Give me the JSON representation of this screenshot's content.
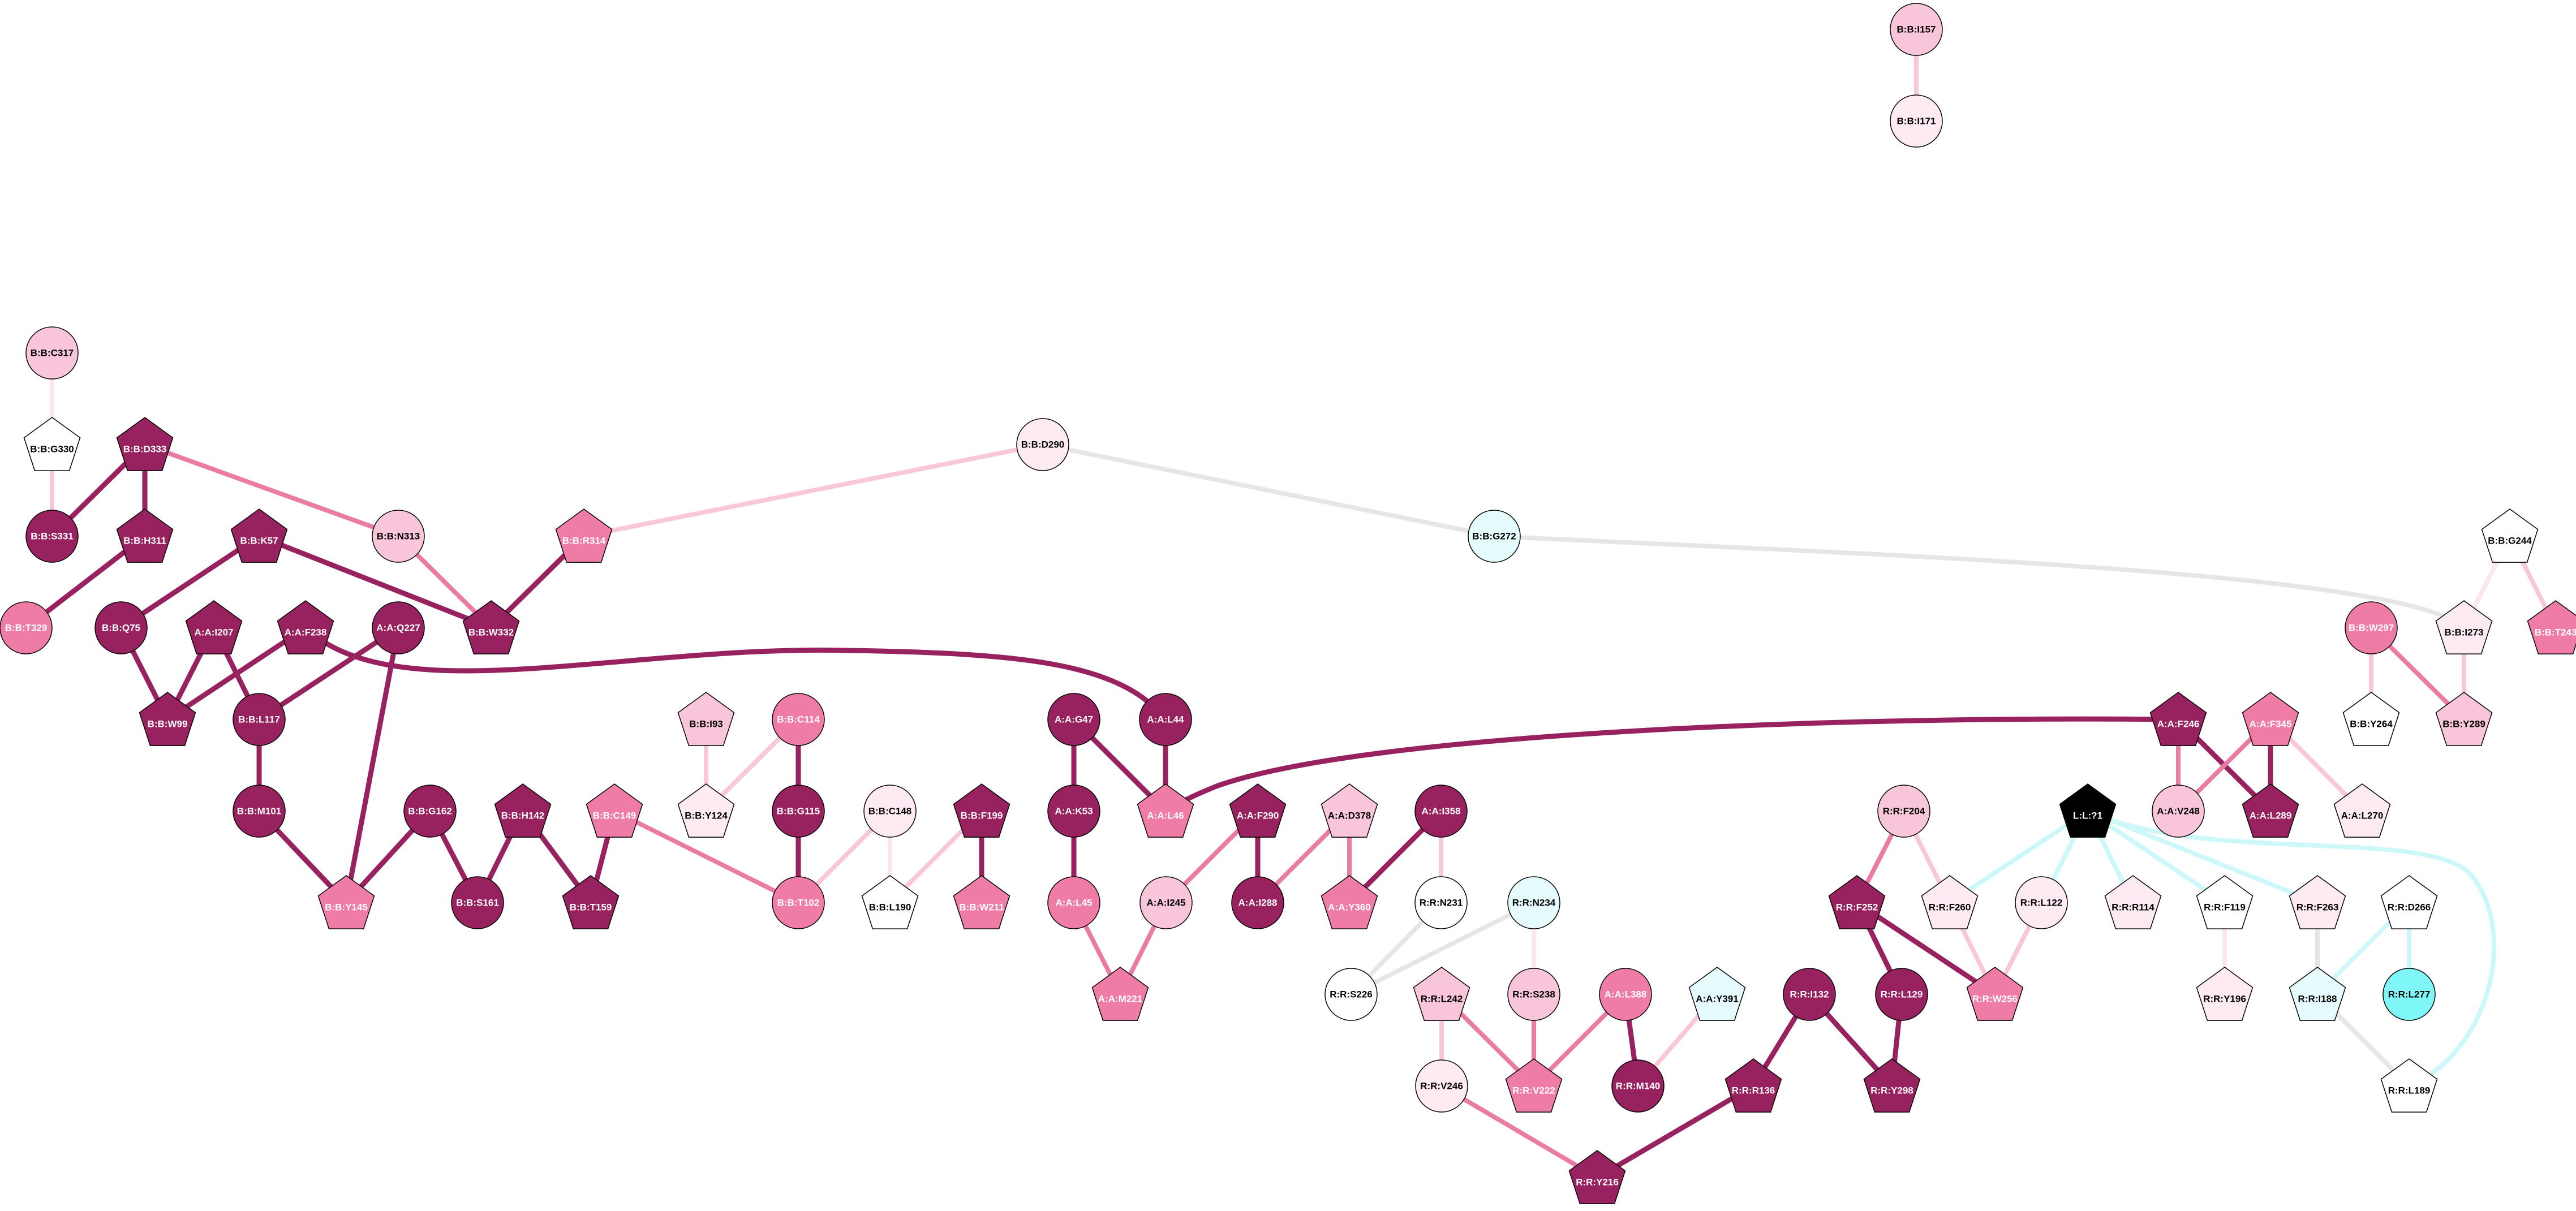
{
  "colors": {
    "dark": "#98215f",
    "mid": "#ef7ca7",
    "light": "#f8c5da",
    "pale": "#fdeaf2",
    "white": "#ffffff",
    "cyan_pale": "#e6fcfc",
    "cyan": "#7ff6f8",
    "black": "#000000",
    "edge_dark": "#98215f",
    "edge_mid": "#ea7ba2",
    "edge_light": "#f8c8d9",
    "edge_pale": "#fce6ef",
    "edge_grey": "#e6e6e6",
    "edge_cyan": "#cdf8f9"
  },
  "nodes": [
    {
      "id": "B:B:I157",
      "label": "B:B:I157",
      "shape": "circle",
      "fill": "light"
    },
    {
      "id": "B:B:I171",
      "label": "B:B:I171",
      "shape": "circle",
      "fill": "pale"
    },
    {
      "id": "B:B:C317",
      "label": "B:B:C317",
      "shape": "circle",
      "fill": "light"
    },
    {
      "id": "B:B:G330",
      "label": "B:B:G330",
      "shape": "pentagon",
      "fill": "white"
    },
    {
      "id": "B:B:D333",
      "label": "B:B:D333",
      "shape": "pentagon",
      "fill": "dark"
    },
    {
      "id": "B:B:S331",
      "label": "B:B:S331",
      "shape": "circle",
      "fill": "dark"
    },
    {
      "id": "B:B:H311",
      "label": "B:B:H311",
      "shape": "pentagon",
      "fill": "dark"
    },
    {
      "id": "B:B:T329",
      "label": "B:B:T329",
      "shape": "circle",
      "fill": "mid"
    },
    {
      "id": "B:B:K57",
      "label": "B:B:K57",
      "shape": "pentagon",
      "fill": "dark"
    },
    {
      "id": "B:B:N313",
      "label": "B:B:N313",
      "shape": "circle",
      "fill": "light"
    },
    {
      "id": "B:B:R314",
      "label": "B:B:R314",
      "shape": "pentagon",
      "fill": "mid"
    },
    {
      "id": "B:B:W332",
      "label": "B:B:W332",
      "shape": "pentagon",
      "fill": "dark"
    },
    {
      "id": "B:B:D290",
      "label": "B:B:D290",
      "shape": "circle",
      "fill": "pale"
    },
    {
      "id": "B:B:G272",
      "label": "B:B:G272",
      "shape": "circle",
      "fill": "cyan_pale"
    },
    {
      "id": "B:B:G244",
      "label": "B:B:G244",
      "shape": "pentagon",
      "fill": "white"
    },
    {
      "id": "B:B:I273",
      "label": "B:B:I273",
      "shape": "pentagon",
      "fill": "pale"
    },
    {
      "id": "B:B:T243",
      "label": "B:B:T243",
      "shape": "pentagon",
      "fill": "mid"
    },
    {
      "id": "B:B:W297",
      "label": "B:B:W297",
      "shape": "circle",
      "fill": "mid"
    },
    {
      "id": "B:B:Y264",
      "label": "B:B:Y264",
      "shape": "pentagon",
      "fill": "white"
    },
    {
      "id": "B:B:Y289",
      "label": "B:B:Y289",
      "shape": "pentagon",
      "fill": "light"
    },
    {
      "id": "B:B:Q75",
      "label": "B:B:Q75",
      "shape": "circle",
      "fill": "dark"
    },
    {
      "id": "A:A:I207",
      "label": "A:A:I207",
      "shape": "pentagon",
      "fill": "dark"
    },
    {
      "id": "A:A:F238",
      "label": "A:A:F238",
      "shape": "pentagon",
      "fill": "dark"
    },
    {
      "id": "A:A:Q227",
      "label": "A:A:Q227",
      "shape": "circle",
      "fill": "dark"
    },
    {
      "id": "B:B:W99",
      "label": "B:B:W99",
      "shape": "pentagon",
      "fill": "dark"
    },
    {
      "id": "B:B:L117",
      "label": "B:B:L117",
      "shape": "circle",
      "fill": "dark"
    },
    {
      "id": "B:B:M101",
      "label": "B:B:M101",
      "shape": "circle",
      "fill": "dark"
    },
    {
      "id": "B:B:G162",
      "label": "B:B:G162",
      "shape": "circle",
      "fill": "dark"
    },
    {
      "id": "B:B:H142",
      "label": "B:B:H142",
      "shape": "pentagon",
      "fill": "dark"
    },
    {
      "id": "B:B:C149",
      "label": "B:B:C149",
      "shape": "pentagon",
      "fill": "mid"
    },
    {
      "id": "B:B:Y145",
      "label": "B:B:Y145",
      "shape": "pentagon",
      "fill": "mid"
    },
    {
      "id": "B:B:S161",
      "label": "B:B:S161",
      "shape": "circle",
      "fill": "dark"
    },
    {
      "id": "B:B:T159",
      "label": "B:B:T159",
      "shape": "pentagon",
      "fill": "dark"
    },
    {
      "id": "B:B:I93",
      "label": "B:B:I93",
      "shape": "pentagon",
      "fill": "light"
    },
    {
      "id": "B:B:Y124",
      "label": "B:B:Y124",
      "shape": "pentagon",
      "fill": "pale"
    },
    {
      "id": "B:B:C114",
      "label": "B:B:C114",
      "shape": "circle",
      "fill": "mid"
    },
    {
      "id": "B:B:G115",
      "label": "B:B:G115",
      "shape": "circle",
      "fill": "dark"
    },
    {
      "id": "B:B:T102",
      "label": "B:B:T102",
      "shape": "circle",
      "fill": "mid"
    },
    {
      "id": "B:B:C148",
      "label": "B:B:C148",
      "shape": "circle",
      "fill": "pale"
    },
    {
      "id": "B:B:L190",
      "label": "B:B:L190",
      "shape": "pentagon",
      "fill": "white"
    },
    {
      "id": "B:B:F199",
      "label": "B:B:F199",
      "shape": "pentagon",
      "fill": "dark"
    },
    {
      "id": "B:B:W211",
      "label": "B:B:W211",
      "shape": "pentagon",
      "fill": "mid"
    },
    {
      "id": "A:A:G47",
      "label": "A:A:G47",
      "shape": "circle",
      "fill": "dark"
    },
    {
      "id": "A:A:L44",
      "label": "A:A:L44",
      "shape": "circle",
      "fill": "dark"
    },
    {
      "id": "A:A:K53",
      "label": "A:A:K53",
      "shape": "circle",
      "fill": "dark"
    },
    {
      "id": "A:A:L46",
      "label": "A:A:L46",
      "shape": "pentagon",
      "fill": "mid"
    },
    {
      "id": "A:A:L45",
      "label": "A:A:L45",
      "shape": "circle",
      "fill": "mid"
    },
    {
      "id": "A:A:M221",
      "label": "A:A:M221",
      "shape": "pentagon",
      "fill": "mid"
    },
    {
      "id": "A:A:F290",
      "label": "A:A:F290",
      "shape": "pentagon",
      "fill": "dark"
    },
    {
      "id": "A:A:I245",
      "label": "A:A:I245",
      "shape": "circle",
      "fill": "light"
    },
    {
      "id": "A:A:I288",
      "label": "A:A:I288",
      "shape": "circle",
      "fill": "dark"
    },
    {
      "id": "A:A:D378",
      "label": "A:A:D378",
      "shape": "pentagon",
      "fill": "light"
    },
    {
      "id": "A:A:I358",
      "label": "A:A:I358",
      "shape": "circle",
      "fill": "dark"
    },
    {
      "id": "A:A:Y360",
      "label": "A:A:Y360",
      "shape": "pentagon",
      "fill": "mid"
    },
    {
      "id": "R:R:N231",
      "label": "R:R:N231",
      "shape": "circle",
      "fill": "white"
    },
    {
      "id": "R:R:N234",
      "label": "R:R:N234",
      "shape": "circle",
      "fill": "cyan_pale"
    },
    {
      "id": "R:R:S226",
      "label": "R:R:S226",
      "shape": "circle",
      "fill": "white"
    },
    {
      "id": "R:R:L242",
      "label": "R:R:L242",
      "shape": "pentagon",
      "fill": "light"
    },
    {
      "id": "R:R:S238",
      "label": "R:R:S238",
      "shape": "circle",
      "fill": "light"
    },
    {
      "id": "A:A:L388",
      "label": "A:A:L388",
      "shape": "circle",
      "fill": "mid"
    },
    {
      "id": "A:A:Y391",
      "label": "A:A:Y391",
      "shape": "pentagon",
      "fill": "cyan_pale"
    },
    {
      "id": "R:R:V246",
      "label": "R:R:V246",
      "shape": "circle",
      "fill": "pale"
    },
    {
      "id": "R:R:V222",
      "label": "R:R:V222",
      "shape": "pentagon",
      "fill": "mid"
    },
    {
      "id": "R:R:M140",
      "label": "R:R:M140",
      "shape": "circle",
      "fill": "dark"
    },
    {
      "id": "R:R:Y216",
      "label": "R:R:Y216",
      "shape": "pentagon",
      "fill": "dark"
    },
    {
      "id": "R:R:I132",
      "label": "R:R:I132",
      "shape": "circle",
      "fill": "dark"
    },
    {
      "id": "R:R:R136",
      "label": "R:R:R136",
      "shape": "pentagon",
      "fill": "dark"
    },
    {
      "id": "R:R:Y298",
      "label": "R:R:Y298",
      "shape": "pentagon",
      "fill": "dark"
    },
    {
      "id": "R:R:F204",
      "label": "R:R:F204",
      "shape": "circle",
      "fill": "light"
    },
    {
      "id": "R:R:F252",
      "label": "R:R:F252",
      "shape": "pentagon",
      "fill": "dark"
    },
    {
      "id": "R:R:L129",
      "label": "R:R:L129",
      "shape": "circle",
      "fill": "dark"
    },
    {
      "id": "R:R:F260",
      "label": "R:R:F260",
      "shape": "pentagon",
      "fill": "pale"
    },
    {
      "id": "R:R:L122",
      "label": "R:R:L122",
      "shape": "circle",
      "fill": "pale"
    },
    {
      "id": "R:R:W256",
      "label": "R:R:W256",
      "shape": "pentagon",
      "fill": "mid"
    },
    {
      "id": "R:R:R114",
      "label": "R:R:R114",
      "shape": "pentagon",
      "fill": "pale"
    },
    {
      "id": "L:L:?1",
      "label": "L:L:?1",
      "shape": "pentagon",
      "fill": "black"
    },
    {
      "id": "R:R:F119",
      "label": "R:R:F119",
      "shape": "pentagon",
      "fill": "white"
    },
    {
      "id": "R:R:F263",
      "label": "R:R:F263",
      "shape": "pentagon",
      "fill": "pale"
    },
    {
      "id": "R:R:D266",
      "label": "R:R:D266",
      "shape": "pentagon",
      "fill": "white"
    },
    {
      "id": "R:R:Y196",
      "label": "R:R:Y196",
      "shape": "pentagon",
      "fill": "pale"
    },
    {
      "id": "R:R:I188",
      "label": "R:R:I188",
      "shape": "pentagon",
      "fill": "cyan_pale"
    },
    {
      "id": "R:R:L277",
      "label": "R:R:L277",
      "shape": "circle",
      "fill": "cyan"
    },
    {
      "id": "R:R:L189",
      "label": "R:R:L189",
      "shape": "pentagon",
      "fill": "white"
    },
    {
      "id": "A:A:F246",
      "label": "A:A:F246",
      "shape": "pentagon",
      "fill": "dark"
    },
    {
      "id": "A:A:F345",
      "label": "A:A:F345",
      "shape": "pentagon",
      "fill": "mid"
    },
    {
      "id": "A:A:V248",
      "label": "A:A:V248",
      "shape": "circle",
      "fill": "light"
    },
    {
      "id": "A:A:L289",
      "label": "A:A:L289",
      "shape": "pentagon",
      "fill": "dark"
    },
    {
      "id": "A:A:L270",
      "label": "A:A:L270",
      "shape": "pentagon",
      "fill": "pale"
    }
  ],
  "edges": [
    {
      "source": "B:B:I157",
      "target": "B:B:I171",
      "color": "edge_light"
    },
    {
      "source": "B:B:C317",
      "target": "B:B:G330",
      "color": "edge_pale"
    },
    {
      "source": "B:B:G330",
      "target": "B:B:S331",
      "color": "edge_light"
    },
    {
      "source": "B:B:D333",
      "target": "B:B:S331",
      "color": "edge_dark"
    },
    {
      "source": "B:B:D333",
      "target": "B:B:H311",
      "color": "edge_dark"
    },
    {
      "source": "B:B:D333",
      "target": "B:B:N313",
      "color": "edge_mid"
    },
    {
      "source": "B:B:H311",
      "target": "B:B:T329",
      "color": "edge_dark"
    },
    {
      "source": "B:B:N313",
      "target": "B:B:W332",
      "color": "edge_mid"
    },
    {
      "source": "B:B:K57",
      "target": "B:B:W332",
      "color": "edge_dark"
    },
    {
      "source": "B:B:K57",
      "target": "B:B:Q75",
      "color": "edge_dark"
    },
    {
      "source": "B:B:R314",
      "target": "B:B:W332",
      "color": "edge_dark"
    },
    {
      "source": "B:B:R314",
      "target": "B:B:D290",
      "color": "edge_light"
    },
    {
      "source": "B:B:D290",
      "target": "B:B:G272",
      "color": "edge_grey"
    },
    {
      "source": "B:B:G272",
      "target": "B:B:I273",
      "color": "edge_grey",
      "curve": "g272"
    },
    {
      "source": "B:B:G244",
      "target": "B:B:I273",
      "color": "edge_pale"
    },
    {
      "source": "B:B:G244",
      "target": "B:B:T243",
      "color": "edge_light"
    },
    {
      "source": "B:B:I273",
      "target": "B:B:Y289",
      "color": "edge_light"
    },
    {
      "source": "B:B:W297",
      "target": "B:B:Y289",
      "color": "edge_mid"
    },
    {
      "source": "B:B:W297",
      "target": "B:B:Y264",
      "color": "edge_light"
    },
    {
      "source": "B:B:Q75",
      "target": "B:B:W99",
      "color": "edge_dark"
    },
    {
      "source": "A:A:I207",
      "target": "B:B:W99",
      "color": "edge_dark"
    },
    {
      "source": "A:A:I207",
      "target": "B:B:L117",
      "color": "edge_dark"
    },
    {
      "source": "A:A:F238",
      "target": "B:B:W99",
      "color": "edge_dark"
    },
    {
      "source": "A:A:F238",
      "target": "A:A:L44",
      "color": "edge_dark",
      "curve": "f238"
    },
    {
      "source": "A:A:Q227",
      "target": "B:B:L117",
      "color": "edge_dark"
    },
    {
      "source": "A:A:Q227",
      "target": "B:B:Y145",
      "color": "edge_dark"
    },
    {
      "source": "B:B:L117",
      "target": "B:B:M101",
      "color": "edge_dark"
    },
    {
      "source": "B:B:M101",
      "target": "B:B:Y145",
      "color": "edge_dark"
    },
    {
      "source": "B:B:G162",
      "target": "B:B:Y145",
      "color": "edge_dark"
    },
    {
      "source": "B:B:G162",
      "target": "B:B:S161",
      "color": "edge_dark"
    },
    {
      "source": "B:B:H142",
      "target": "B:B:S161",
      "color": "edge_dark"
    },
    {
      "source": "B:B:H142",
      "target": "B:B:T159",
      "color": "edge_dark"
    },
    {
      "source": "B:B:C149",
      "target": "B:B:T159",
      "color": "edge_dark"
    },
    {
      "source": "B:B:C149",
      "target": "B:B:T102",
      "color": "edge_mid"
    },
    {
      "source": "B:B:I93",
      "target": "B:B:Y124",
      "color": "edge_light"
    },
    {
      "source": "B:B:C114",
      "target": "B:B:Y124",
      "color": "edge_light"
    },
    {
      "source": "B:B:C114",
      "target": "B:B:G115",
      "color": "edge_dark"
    },
    {
      "source": "B:B:G115",
      "target": "B:B:T102",
      "color": "edge_dark"
    },
    {
      "source": "B:B:C148",
      "target": "B:B:T102",
      "color": "edge_light"
    },
    {
      "source": "B:B:C148",
      "target": "B:B:L190",
      "color": "edge_pale"
    },
    {
      "source": "B:B:F199",
      "target": "B:B:L190",
      "color": "edge_light"
    },
    {
      "source": "B:B:F199",
      "target": "B:B:W211",
      "color": "edge_dark"
    },
    {
      "source": "A:A:G47",
      "target": "A:A:K53",
      "color": "edge_dark"
    },
    {
      "source": "A:A:G47",
      "target": "A:A:L46",
      "color": "edge_dark"
    },
    {
      "source": "A:A:L44",
      "target": "A:A:L46",
      "color": "edge_dark"
    },
    {
      "source": "A:A:K53",
      "target": "A:A:L45",
      "color": "edge_dark"
    },
    {
      "source": "A:A:L45",
      "target": "A:A:M221",
      "color": "edge_mid"
    },
    {
      "source": "A:A:I245",
      "target": "A:A:M221",
      "color": "edge_mid"
    },
    {
      "source": "A:A:F290",
      "target": "A:A:I245",
      "color": "edge_mid"
    },
    {
      "source": "A:A:F290",
      "target": "A:A:I288",
      "color": "edge_dark"
    },
    {
      "source": "A:A:D378",
      "target": "A:A:I288",
      "color": "edge_mid"
    },
    {
      "source": "A:A:D378",
      "target": "A:A:Y360",
      "color": "edge_mid"
    },
    {
      "source": "A:A:I358",
      "target": "A:A:Y360",
      "color": "edge_dark"
    },
    {
      "source": "A:A:I358",
      "target": "R:R:N231",
      "color": "edge_light"
    },
    {
      "source": "A:A:F246",
      "target": "A:A:L46",
      "color": "edge_dark",
      "curve": "f246"
    },
    {
      "source": "A:A:F246",
      "target": "A:A:V248",
      "color": "edge_mid"
    },
    {
      "source": "A:A:F246",
      "target": "A:A:L289",
      "color": "edge_dark"
    },
    {
      "source": "A:A:F345",
      "target": "A:A:V248",
      "color": "edge_mid"
    },
    {
      "source": "A:A:F345",
      "target": "A:A:L289",
      "color": "edge_dark"
    },
    {
      "source": "A:A:F345",
      "target": "A:A:L270",
      "color": "edge_light"
    },
    {
      "source": "R:R:N231",
      "target": "R:R:S226",
      "color": "edge_grey"
    },
    {
      "source": "R:R:N234",
      "target": "R:R:S226",
      "color": "edge_grey"
    },
    {
      "source": "R:R:N234",
      "target": "R:R:S238",
      "color": "edge_pale"
    },
    {
      "source": "R:R:L242",
      "target": "R:R:V246",
      "color": "edge_light"
    },
    {
      "source": "R:R:L242",
      "target": "R:R:V222",
      "color": "edge_mid"
    },
    {
      "source": "R:R:S238",
      "target": "R:R:V222",
      "color": "edge_mid"
    },
    {
      "source": "A:A:L388",
      "target": "R:R:V222",
      "color": "edge_mid"
    },
    {
      "source": "A:A:L388",
      "target": "R:R:M140",
      "color": "edge_dark"
    },
    {
      "source": "A:A:Y391",
      "target": "R:R:M140",
      "color": "edge_light"
    },
    {
      "source": "R:R:V246",
      "target": "R:R:Y216",
      "color": "edge_mid"
    },
    {
      "source": "R:R:R136",
      "target": "R:R:Y216",
      "color": "edge_dark"
    },
    {
      "source": "R:R:I132",
      "target": "R:R:R136",
      "color": "edge_dark"
    },
    {
      "source": "R:R:I132",
      "target": "R:R:Y298",
      "color": "edge_dark"
    },
    {
      "source": "R:R:L129",
      "target": "R:R:Y298",
      "color": "edge_dark"
    },
    {
      "source": "R:R:F204",
      "target": "R:R:F252",
      "color": "edge_mid"
    },
    {
      "source": "R:R:F204",
      "target": "R:R:F260",
      "color": "edge_light"
    },
    {
      "source": "R:R:F252",
      "target": "R:R:L129",
      "color": "edge_dark"
    },
    {
      "source": "R:R:F252",
      "target": "R:R:W256",
      "color": "edge_dark"
    },
    {
      "source": "R:R:F260",
      "target": "R:R:W256",
      "color": "edge_light"
    },
    {
      "source": "R:R:L122",
      "target": "R:R:W256",
      "color": "edge_light"
    },
    {
      "source": "L:L:?1",
      "target": "R:R:F260",
      "color": "edge_cyan"
    },
    {
      "source": "L:L:?1",
      "target": "R:R:L122",
      "color": "edge_cyan"
    },
    {
      "source": "L:L:?1",
      "target": "R:R:R114",
      "color": "edge_cyan"
    },
    {
      "source": "L:L:?1",
      "target": "R:R:F119",
      "color": "edge_cyan"
    },
    {
      "source": "L:L:?1",
      "target": "R:R:F263",
      "color": "edge_cyan"
    },
    {
      "source": "L:L:?1",
      "target": "R:R:L189",
      "color": "edge_cyan",
      "curve": "l189"
    },
    {
      "source": "R:R:F119",
      "target": "R:R:Y196",
      "color": "edge_pale"
    },
    {
      "source": "R:R:F263",
      "target": "R:R:I188",
      "color": "edge_grey"
    },
    {
      "source": "R:R:D266",
      "target": "R:R:I188",
      "color": "edge_cyan"
    },
    {
      "source": "R:R:D266",
      "target": "R:R:L277",
      "color": "edge_cyan"
    },
    {
      "source": "R:R:I188",
      "target": "R:R:L189",
      "color": "edge_grey"
    }
  ]
}
